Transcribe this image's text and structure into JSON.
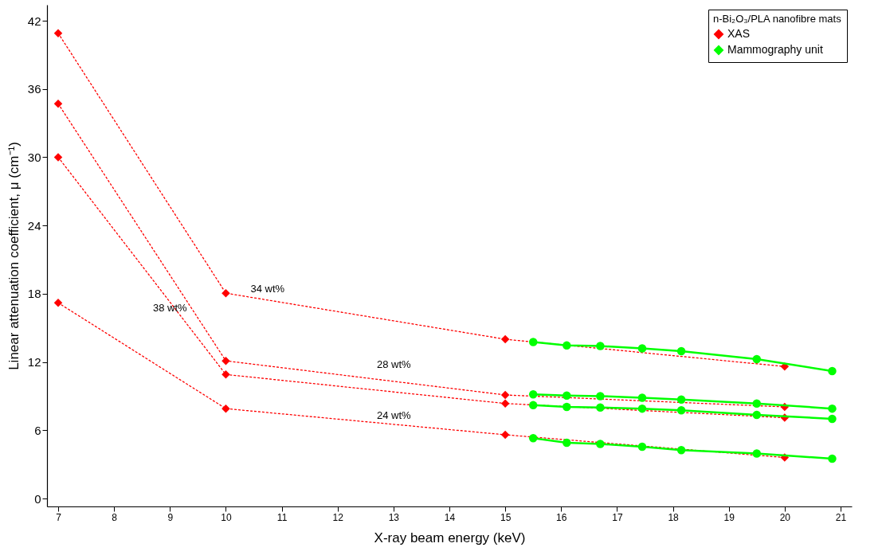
{
  "chart_data": {
    "type": "line",
    "xlabel": "X-ray beam energy (keV)",
    "ylabel": "Linear attenuation coefficient, μ (cm⁻¹)",
    "legend_title": "n-Bi₂O₃/PLA nanofibre mats",
    "legend": "top right",
    "grid": false,
    "xlim": [
      6.8,
      21.2
    ],
    "xticks": [
      7,
      8,
      9,
      10,
      11,
      12,
      13,
      14,
      15,
      16,
      17,
      18,
      19,
      20,
      21
    ],
    "ylim": [
      -0.7,
      43.4
    ],
    "yticks": [
      0,
      6,
      12,
      18,
      24,
      30,
      36,
      42
    ],
    "series": [
      {
        "name": "XAS",
        "color": "#ff0000",
        "marker": "diamond",
        "line_style": "dotted",
        "x": [
          7,
          10,
          15,
          20
        ],
        "values": [
          40.9,
          18.05,
          14.0,
          11.6
        ]
      },
      {
        "color": "#ff0000",
        "marker": "diamond",
        "line_style": "dotted",
        "x": [
          7,
          10,
          15,
          20
        ],
        "values": [
          34.7,
          12.1,
          9.1,
          8.05
        ]
      },
      {
        "color": "#ff0000",
        "marker": "diamond",
        "line_style": "dotted",
        "x": [
          7,
          10,
          15,
          20
        ],
        "values": [
          30.0,
          10.9,
          8.35,
          7.1
        ]
      },
      {
        "color": "#ff0000",
        "marker": "diamond",
        "line_style": "dotted",
        "x": [
          7,
          10,
          15,
          20
        ],
        "values": [
          17.2,
          7.9,
          5.6,
          3.6
        ]
      },
      {
        "name": "Mammography unit",
        "color": "#00ff00",
        "marker": "circle",
        "line_style": "solid",
        "x": [
          15.5,
          16.1,
          16.7,
          17.45,
          18.15,
          19.5,
          20.85
        ],
        "values": [
          13.75,
          13.45,
          13.4,
          13.2,
          12.95,
          12.25,
          11.2
        ]
      },
      {
        "color": "#00ff00",
        "marker": "circle",
        "line_style": "solid",
        "x": [
          15.5,
          16.1,
          16.7,
          17.45,
          18.15,
          19.5,
          20.85
        ],
        "values": [
          9.15,
          9.05,
          9.0,
          8.85,
          8.7,
          8.35,
          7.9
        ]
      },
      {
        "color": "#00ff00",
        "marker": "circle",
        "line_style": "solid",
        "x": [
          15.5,
          16.1,
          16.7,
          17.45,
          18.15,
          19.5,
          20.85
        ],
        "values": [
          8.2,
          8.05,
          8.0,
          7.9,
          7.75,
          7.35,
          7.0
        ]
      },
      {
        "color": "#00ff00",
        "marker": "circle",
        "line_style": "solid",
        "x": [
          15.5,
          16.1,
          16.7,
          17.45,
          18.15,
          19.5,
          20.85
        ],
        "values": [
          5.3,
          4.9,
          4.8,
          4.55,
          4.25,
          3.95,
          3.5
        ]
      }
    ],
    "annotations": [
      "34 wt%",
      {
        "text": "38 wt%",
        "x": 9.0,
        "y": 16.7
      },
      "28 wt%",
      "24 wt%"
    ]
  }
}
